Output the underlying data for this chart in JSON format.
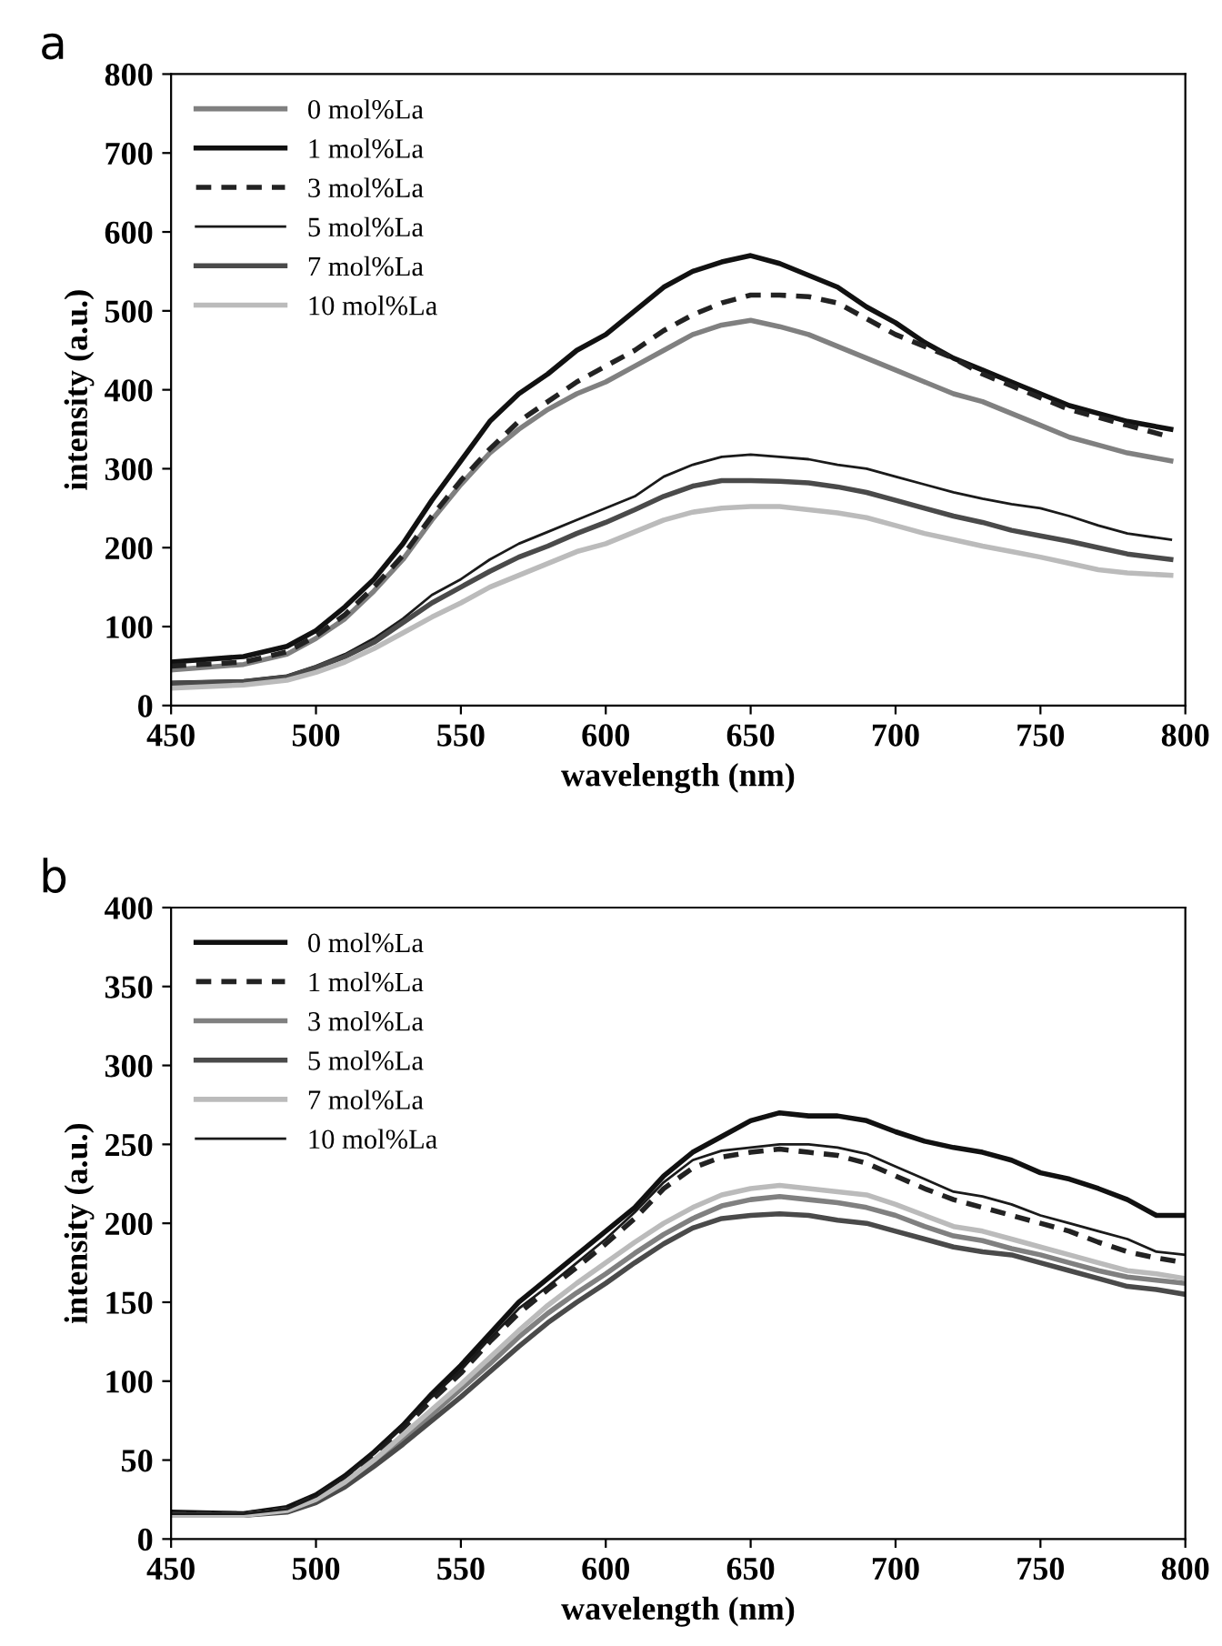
{
  "chart_data": [
    {
      "type": "line",
      "title": "a",
      "xlabel": "wavelength (nm)",
      "ylabel": "intensity (a.u.)",
      "xlim": [
        450,
        800
      ],
      "ylim": [
        0,
        800
      ],
      "xticks": [
        450,
        500,
        550,
        600,
        650,
        700,
        750,
        800
      ],
      "yticks": [
        0,
        100,
        200,
        300,
        400,
        500,
        600,
        700,
        800
      ],
      "grid": false,
      "legend": "top left",
      "marker": "none",
      "x": [
        450,
        475,
        490,
        500,
        510,
        520,
        530,
        540,
        550,
        560,
        570,
        580,
        590,
        600,
        610,
        620,
        630,
        640,
        650,
        660,
        670,
        680,
        690,
        700,
        710,
        720,
        730,
        740,
        750,
        760,
        770,
        780,
        795
      ],
      "series": [
        {
          "name": "0 mol%La",
          "color": "#808080",
          "line_style": "solid",
          "values": [
            45,
            52,
            65,
            85,
            110,
            145,
            185,
            235,
            280,
            320,
            350,
            375,
            395,
            410,
            430,
            450,
            470,
            482,
            488,
            480,
            470,
            455,
            440,
            425,
            410,
            395,
            385,
            370,
            355,
            340,
            330,
            320,
            310
          ]
        },
        {
          "name": "1 mol%La",
          "color": "#111111",
          "line_style": "solid",
          "values": [
            55,
            62,
            75,
            95,
            125,
            160,
            205,
            260,
            310,
            360,
            395,
            420,
            450,
            470,
            500,
            530,
            550,
            562,
            570,
            560,
            545,
            530,
            505,
            485,
            460,
            440,
            425,
            410,
            395,
            380,
            370,
            360,
            350
          ]
        },
        {
          "name": "3 mol%La",
          "color": "#222222",
          "line_style": "dashed",
          "values": [
            50,
            55,
            68,
            88,
            115,
            150,
            190,
            240,
            285,
            325,
            360,
            385,
            410,
            430,
            450,
            475,
            495,
            510,
            520,
            520,
            518,
            510,
            490,
            470,
            455,
            440,
            420,
            405,
            390,
            375,
            365,
            355,
            340
          ]
        },
        {
          "name": "5 mol%La",
          "color": "#1a1a1a",
          "line_style": "solid",
          "values": [
            30,
            32,
            38,
            50,
            65,
            85,
            110,
            140,
            160,
            185,
            205,
            220,
            235,
            250,
            265,
            290,
            305,
            315,
            318,
            315,
            312,
            305,
            300,
            290,
            280,
            270,
            262,
            255,
            250,
            240,
            228,
            218,
            210
          ]
        },
        {
          "name": "7 mol%La",
          "color": "#4a4a4a",
          "line_style": "solid",
          "values": [
            28,
            30,
            36,
            48,
            62,
            80,
            105,
            130,
            150,
            170,
            188,
            202,
            218,
            232,
            248,
            265,
            278,
            285,
            285,
            284,
            282,
            277,
            270,
            260,
            250,
            240,
            232,
            222,
            215,
            208,
            200,
            192,
            185
          ]
        },
        {
          "name": "10 mol%La",
          "color": "#bbbbbb",
          "line_style": "solid",
          "values": [
            22,
            26,
            32,
            42,
            55,
            72,
            92,
            112,
            130,
            150,
            165,
            180,
            195,
            205,
            220,
            235,
            245,
            250,
            252,
            252,
            248,
            244,
            238,
            228,
            218,
            210,
            202,
            195,
            188,
            180,
            172,
            168,
            165
          ]
        }
      ]
    },
    {
      "type": "line",
      "title": "b",
      "xlabel": "wavelength (nm)",
      "ylabel": "intensity (a.u.)",
      "xlim": [
        450,
        800
      ],
      "ylim": [
        0,
        400
      ],
      "xticks": [
        450,
        500,
        550,
        600,
        650,
        700,
        750,
        800
      ],
      "yticks": [
        0,
        50,
        100,
        150,
        200,
        250,
        300,
        350,
        400
      ],
      "grid": false,
      "legend": "top left",
      "marker": "none",
      "x": [
        450,
        475,
        490,
        500,
        510,
        520,
        530,
        540,
        550,
        560,
        570,
        580,
        590,
        600,
        610,
        620,
        630,
        640,
        650,
        660,
        670,
        680,
        690,
        700,
        710,
        720,
        730,
        740,
        750,
        760,
        770,
        780,
        790,
        800
      ],
      "series": [
        {
          "name": "0 mol%La",
          "color": "#111111",
          "line_style": "solid",
          "values": [
            17,
            16,
            20,
            28,
            40,
            55,
            72,
            92,
            110,
            130,
            150,
            165,
            180,
            195,
            210,
            230,
            245,
            255,
            265,
            270,
            268,
            268,
            265,
            258,
            252,
            248,
            245,
            240,
            232,
            228,
            222,
            215,
            205,
            205
          ]
        },
        {
          "name": "1 mol%La",
          "color": "#222222",
          "line_style": "dashed",
          "values": [
            16,
            16,
            19,
            27,
            38,
            52,
            70,
            88,
            105,
            125,
            143,
            158,
            172,
            187,
            203,
            222,
            235,
            242,
            245,
            247,
            245,
            243,
            238,
            230,
            222,
            215,
            210,
            205,
            200,
            195,
            188,
            182,
            178,
            175
          ]
        },
        {
          "name": "3 mol%La",
          "color": "#808080",
          "line_style": "solid",
          "values": [
            15,
            15,
            18,
            24,
            35,
            48,
            63,
            79,
            95,
            111,
            128,
            143,
            156,
            168,
            181,
            193,
            203,
            211,
            215,
            217,
            215,
            213,
            210,
            205,
            198,
            192,
            189,
            184,
            180,
            175,
            170,
            166,
            164,
            162
          ]
        },
        {
          "name": "5 mol%La",
          "color": "#4a4a4a",
          "line_style": "solid",
          "values": [
            15,
            15,
            17,
            23,
            33,
            46,
            60,
            75,
            90,
            106,
            122,
            137,
            150,
            162,
            175,
            187,
            197,
            203,
            205,
            206,
            205,
            202,
            200,
            195,
            190,
            185,
            182,
            180,
            175,
            170,
            165,
            160,
            158,
            155
          ]
        },
        {
          "name": "7 mol%La",
          "color": "#bbbbbb",
          "line_style": "solid",
          "values": [
            15,
            15,
            18,
            25,
            36,
            50,
            66,
            82,
            98,
            115,
            132,
            148,
            162,
            175,
            188,
            200,
            210,
            218,
            222,
            224,
            222,
            220,
            218,
            212,
            205,
            198,
            195,
            190,
            185,
            180,
            175,
            170,
            168,
            165
          ]
        },
        {
          "name": "10 mol%La",
          "color": "#1a1a1a",
          "line_style": "solid",
          "values": [
            16,
            16,
            19,
            27,
            39,
            54,
            71,
            90,
            107,
            127,
            146,
            160,
            175,
            190,
            207,
            226,
            240,
            246,
            248,
            250,
            250,
            248,
            244,
            236,
            228,
            220,
            217,
            212,
            205,
            200,
            195,
            190,
            182,
            180
          ]
        }
      ]
    }
  ]
}
